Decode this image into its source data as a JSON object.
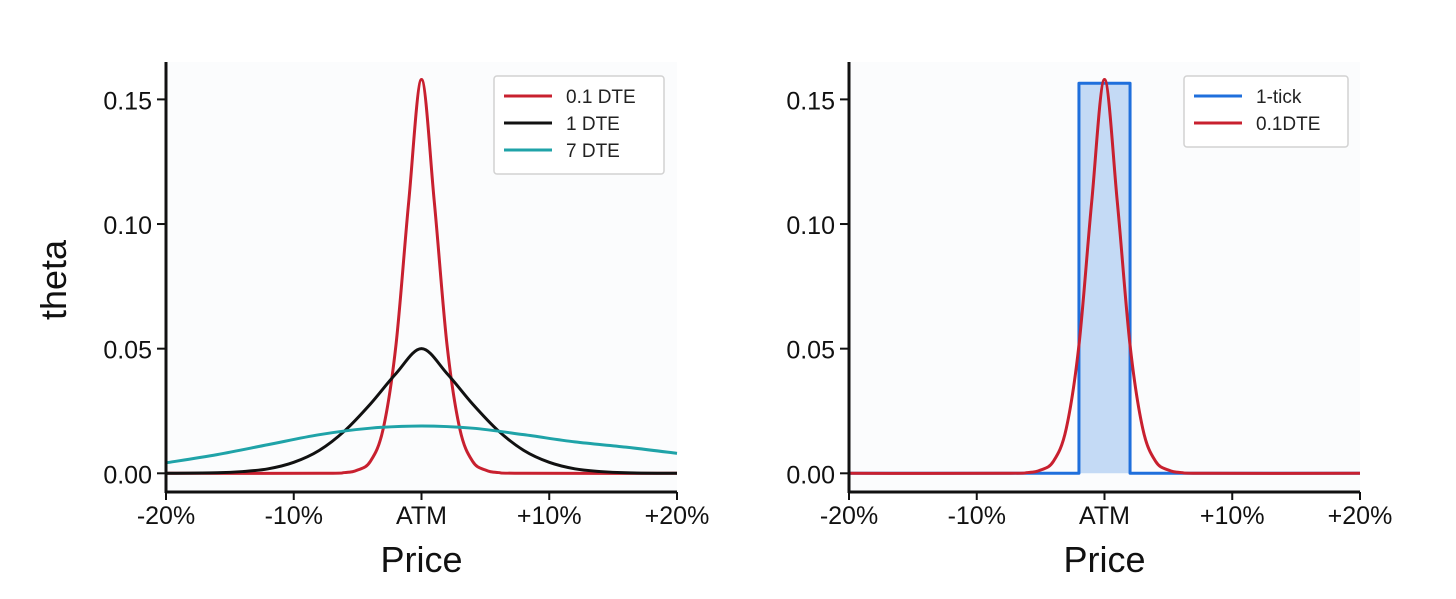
{
  "chart_data": [
    {
      "type": "line",
      "title": "",
      "xlabel": "Price",
      "ylabel": "theta",
      "xlim": [
        -20,
        20
      ],
      "ylim": [
        -0.0075,
        0.165
      ],
      "x_ticks": [
        {
          "value": -20,
          "label": "-20%"
        },
        {
          "value": -10,
          "label": "-10%"
        },
        {
          "value": 0,
          "label": "ATM"
        },
        {
          "value": 10,
          "label": "+10%"
        },
        {
          "value": 20,
          "label": "+20%"
        }
      ],
      "y_ticks": [
        {
          "value": 0.0,
          "label": "0.00"
        },
        {
          "value": 0.05,
          "label": "0.05"
        },
        {
          "value": 0.1,
          "label": "0.10"
        },
        {
          "value": 0.15,
          "label": "0.15"
        }
      ],
      "grid": false,
      "legend_position": "top-right",
      "series": [
        {
          "name": "0.1 DTE",
          "color": "#c8202f",
          "x": [
            -20,
            -8,
            -6,
            -5,
            -4,
            -3,
            -2,
            -1,
            0,
            1,
            2,
            3,
            4,
            5,
            6,
            8,
            20
          ],
          "y": [
            0,
            0,
            0.0003,
            0.0013,
            0.0048,
            0.0178,
            0.0514,
            0.109,
            0.158,
            0.109,
            0.0514,
            0.0178,
            0.0048,
            0.0013,
            0.0003,
            0,
            0
          ]
        },
        {
          "name": "1 DTE",
          "color": "#111111",
          "x": [
            -20,
            -16,
            -14,
            -12,
            -10,
            -8,
            -6,
            -4,
            -2,
            0,
            2,
            4,
            6,
            8,
            10,
            12,
            14,
            16,
            20
          ],
          "y": [
            0,
            0.0002,
            0.0007,
            0.0018,
            0.0044,
            0.0092,
            0.0171,
            0.0278,
            0.04,
            0.05,
            0.04,
            0.0278,
            0.0171,
            0.0092,
            0.0044,
            0.0018,
            0.0007,
            0.0002,
            0
          ]
        },
        {
          "name": "7 DTE",
          "color": "#1fa3a8",
          "x": [
            -20,
            -16,
            -12,
            -8,
            -4,
            0,
            4,
            8,
            12,
            16,
            20
          ],
          "y": [
            0.0042,
            0.0075,
            0.0115,
            0.0155,
            0.0181,
            0.019,
            0.0181,
            0.0155,
            0.0126,
            0.0105,
            0.008
          ]
        }
      ]
    },
    {
      "type": "line",
      "title": "",
      "xlabel": "Price",
      "ylabel": "",
      "xlim": [
        -20,
        20
      ],
      "ylim": [
        -0.0075,
        0.165
      ],
      "x_ticks": [
        {
          "value": -20,
          "label": "-20%"
        },
        {
          "value": -10,
          "label": "-10%"
        },
        {
          "value": 0,
          "label": "ATM"
        },
        {
          "value": 10,
          "label": "+10%"
        },
        {
          "value": 20,
          "label": "+20%"
        }
      ],
      "y_ticks": [
        {
          "value": 0.0,
          "label": "0.00"
        },
        {
          "value": 0.05,
          "label": "0.05"
        },
        {
          "value": 0.1,
          "label": "0.10"
        },
        {
          "value": 0.15,
          "label": "0.15"
        }
      ],
      "grid": false,
      "legend_position": "top-right",
      "series": [
        {
          "name": "1-tick",
          "color": "#1f6fdc",
          "fill": "#c4daf5",
          "x": [
            -20,
            -2,
            -2,
            2,
            2,
            20
          ],
          "y": [
            0,
            0,
            0.1565,
            0.1565,
            0,
            0
          ]
        },
        {
          "name": "0.1DTE",
          "color": "#c8202f",
          "x": [
            -20,
            -8,
            -6,
            -5,
            -4,
            -3,
            -2,
            -1,
            0,
            1,
            2,
            3,
            4,
            5,
            6,
            8,
            20
          ],
          "y": [
            0,
            0,
            0.0003,
            0.0013,
            0.0048,
            0.0178,
            0.0514,
            0.109,
            0.158,
            0.109,
            0.0514,
            0.0178,
            0.0048,
            0.0013,
            0.0003,
            0,
            0
          ]
        }
      ]
    }
  ]
}
